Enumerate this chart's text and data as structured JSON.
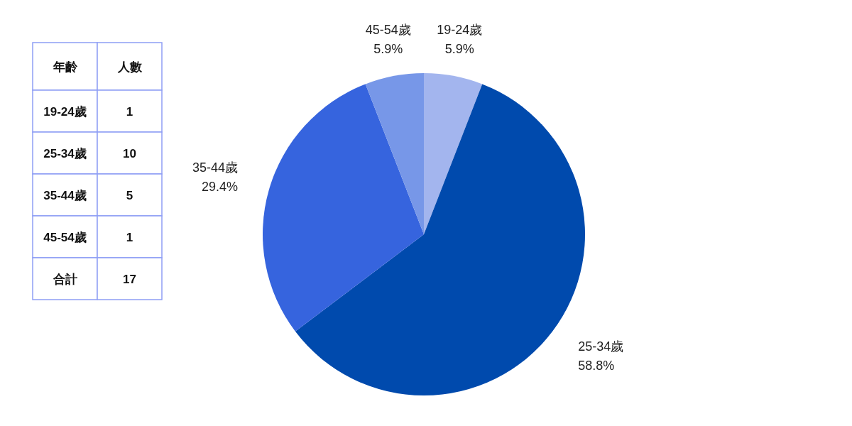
{
  "chart_data": [
    {
      "type": "other",
      "annotations": [
        "年齡",
        "人數",
        "19-24歲",
        "1",
        "25-34歲",
        "10",
        "35-44歲",
        "5",
        "45-54歲",
        "1",
        "合計",
        "17"
      ]
    },
    {
      "type": "pie",
      "categories": [
        "19-24歲",
        "25-34歲",
        "35-44歲",
        "45-54歲"
      ],
      "values": [
        5.9,
        58.8,
        29.4,
        5.9
      ],
      "colors": [
        "#a3b5ee",
        "#004aad",
        "#3664de",
        "#7797e8"
      ],
      "value_labels": [
        "5.9%",
        "58.8%",
        "29.4%",
        "5.9%"
      ]
    }
  ]
}
